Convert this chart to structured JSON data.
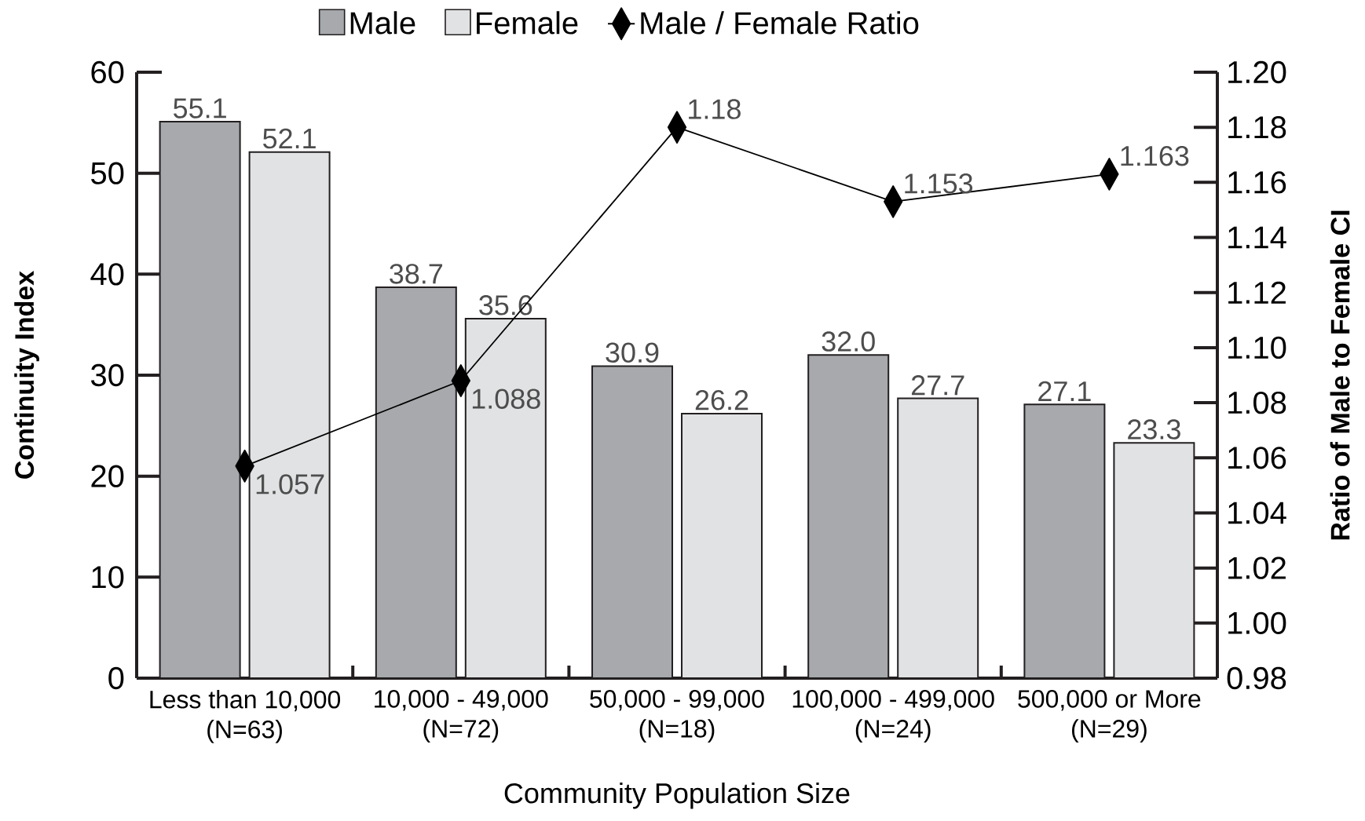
{
  "chart_data": {
    "type": "bar",
    "categories": [
      "Less than 10,000 (N=63)",
      "10,000 - 49,000 (N=72)",
      "50,000 - 99,000 (N=18)",
      "100,000 - 499,000 (N=24)",
      "500,000 or More (N=29)"
    ],
    "xlabel": "Community Population Size",
    "ylabel": "Continuity  Index",
    "y2label": "Ratio of Male to Female CI",
    "ylim": [
      0,
      60
    ],
    "yticks": [
      0,
      10,
      20,
      30,
      40,
      50,
      60
    ],
    "y2lim": [
      0.98,
      1.2
    ],
    "y2ticks": [
      0.98,
      {
        "value": 1.0,
        "label": "1.00"
      },
      1.02,
      1.04,
      1.06,
      1.08,
      {
        "value": 1.1,
        "label": "1.10"
      },
      1.12,
      1.14,
      1.16,
      1.18,
      {
        "value": 1.2,
        "label": "1.20"
      }
    ],
    "legend": "top",
    "series": [
      {
        "name": "Male",
        "color": "#a7a9ac",
        "values": [
          55.1,
          38.7,
          30.9,
          32.0,
          27.1
        ],
        "value_labels": [
          "55.1",
          "38.7",
          "30.9",
          "32.0",
          "27.1"
        ]
      },
      {
        "name": "Female",
        "color": "#e1e2e3",
        "values": [
          52.1,
          35.6,
          26.2,
          27.7,
          23.3
        ],
        "value_labels": [
          "52.1",
          "35.6",
          "26.2",
          "27.7",
          "23.3"
        ]
      },
      {
        "name": "Male / Female Ratio",
        "type": "line",
        "axis": "y2",
        "color": "#000000",
        "marker": "diamond",
        "values": [
          1.057,
          1.088,
          1.18,
          1.153,
          1.163
        ],
        "value_labels": [
          "1.057",
          "1.088",
          "1.18",
          "1.153",
          "1.163"
        ]
      }
    ]
  }
}
